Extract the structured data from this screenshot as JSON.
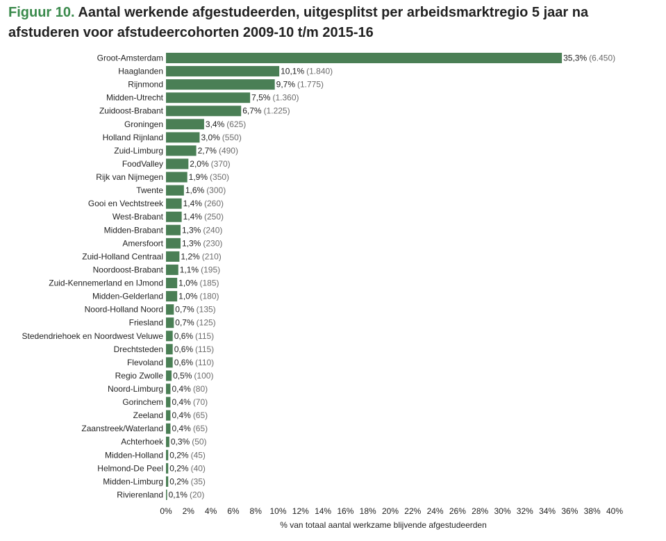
{
  "figure": {
    "label": "Figuur 10.",
    "title": "Aantal werkende afgestudeerden, uitgesplitst per arbeidsmarktregio 5 jaar na afstuderen voor afstudeercohorten 2009-10 t/m 2015-16"
  },
  "chart_data": {
    "type": "bar",
    "orientation": "horizontal",
    "xlabel": "% van totaal aantal werkzame blijvende afgestudeerden",
    "ylabel": "",
    "xlim": [
      0,
      40
    ],
    "grid": false,
    "color": "#4a7f55",
    "categories": [
      "Groot-Amsterdam",
      "Haaglanden",
      "Rijnmond",
      "Midden-Utrecht",
      "Zuidoost-Brabant",
      "Groningen",
      "Holland Rijnland",
      "Zuid-Limburg",
      "FoodValley",
      "Rijk van Nijmegen",
      "Twente",
      "Gooi en Vechtstreek",
      "West-Brabant",
      "Midden-Brabant",
      "Amersfoort",
      "Zuid-Holland Centraal",
      "Noordoost-Brabant",
      "Zuid-Kennemerland en IJmond",
      "Midden-Gelderland",
      "Noord-Holland Noord",
      "Friesland",
      "Stedendriehoek en Noordwest Veluwe",
      "Drechtsteden",
      "Flevoland",
      "Regio Zwolle",
      "Noord-Limburg",
      "Gorinchem",
      "Zeeland",
      "Zaanstreek/Waterland",
      "Achterhoek",
      "Midden-Holland",
      "Helmond-De Peel",
      "Midden-Limburg",
      "Rivierenland"
    ],
    "values": [
      35.3,
      10.1,
      9.7,
      7.5,
      6.7,
      3.4,
      3.0,
      2.7,
      2.0,
      1.9,
      1.6,
      1.4,
      1.4,
      1.3,
      1.3,
      1.2,
      1.1,
      1.0,
      1.0,
      0.7,
      0.7,
      0.6,
      0.6,
      0.6,
      0.5,
      0.4,
      0.4,
      0.4,
      0.4,
      0.3,
      0.2,
      0.2,
      0.2,
      0.1
    ],
    "value_labels": [
      "35,3%",
      "10,1%",
      "9,7%",
      "7,5%",
      "6,7%",
      "3,4%",
      "3,0%",
      "2,7%",
      "2,0%",
      "1,9%",
      "1,6%",
      "1,4%",
      "1,4%",
      "1,3%",
      "1,3%",
      "1,2%",
      "1,1%",
      "1,0%",
      "1,0%",
      "0,7%",
      "0,7%",
      "0,6%",
      "0,6%",
      "0,6%",
      "0,5%",
      "0,4%",
      "0,4%",
      "0,4%",
      "0,4%",
      "0,3%",
      "0,2%",
      "0,2%",
      "0,2%",
      "0,1%"
    ],
    "counts": [
      "(6.450)",
      "(1.840)",
      "(1.775)",
      "(1.360)",
      "(1.225)",
      "(625)",
      "(550)",
      "(490)",
      "(370)",
      "(350)",
      "(300)",
      "(260)",
      "(250)",
      "(240)",
      "(230)",
      "(210)",
      "(195)",
      "(185)",
      "(180)",
      "(135)",
      "(125)",
      "(115)",
      "(115)",
      "(110)",
      "(100)",
      "(80)",
      "(70)",
      "(65)",
      "(65)",
      "(50)",
      "(45)",
      "(40)",
      "(35)",
      "(20)"
    ],
    "ticks": [
      0,
      2,
      4,
      6,
      8,
      10,
      12,
      14,
      16,
      18,
      20,
      22,
      24,
      26,
      28,
      30,
      32,
      34,
      36,
      38,
      40
    ],
    "tick_labels": [
      "0%",
      "2%",
      "4%",
      "6%",
      "8%",
      "10%",
      "12%",
      "14%",
      "16%",
      "18%",
      "20%",
      "22%",
      "24%",
      "26%",
      "28%",
      "30%",
      "32%",
      "34%",
      "36%",
      "38%",
      "40%"
    ]
  }
}
